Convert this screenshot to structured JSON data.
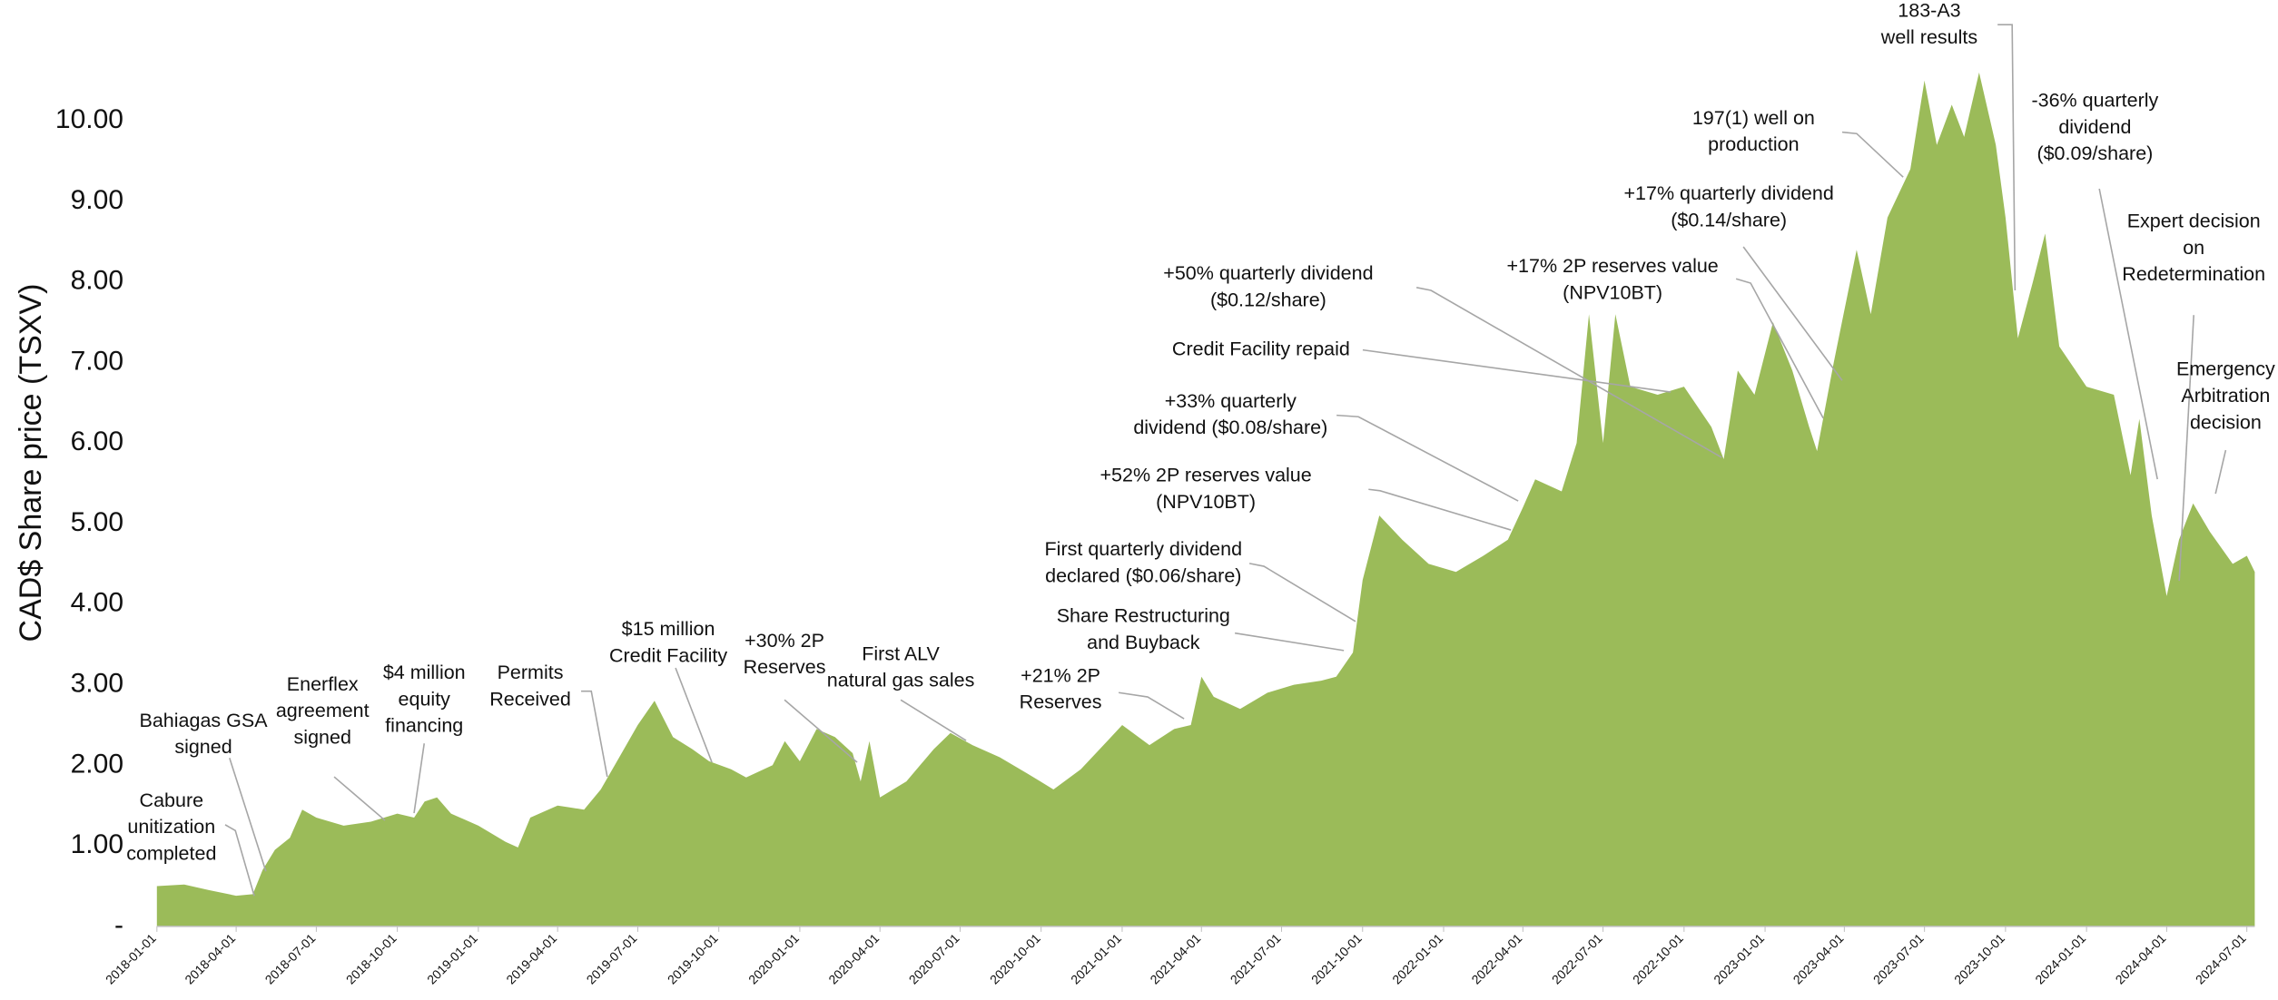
{
  "chart_data": {
    "type": "area",
    "y_label": "CAD$ Share price (TSXV)",
    "color": "#9bbb59",
    "xlim": [
      "2018-01-01",
      "2024-07-10"
    ],
    "ylim": [
      0,
      11.5
    ],
    "yticks": [
      {
        "value": 0,
        "label": "-"
      },
      {
        "value": 1,
        "label": "1.00"
      },
      {
        "value": 2,
        "label": "2.00"
      },
      {
        "value": 3,
        "label": "3.00"
      },
      {
        "value": 4,
        "label": "4.00"
      },
      {
        "value": 5,
        "label": "5.00"
      },
      {
        "value": 6,
        "label": "6.00"
      },
      {
        "value": 7,
        "label": "7.00"
      },
      {
        "value": 8,
        "label": "8.00"
      },
      {
        "value": 9,
        "label": "9.00"
      },
      {
        "value": 10,
        "label": "10.00"
      }
    ],
    "xticks": [
      "2018-01-01",
      "2018-04-01",
      "2018-07-01",
      "2018-10-01",
      "2019-01-01",
      "2019-04-01",
      "2019-07-01",
      "2019-10-01",
      "2020-01-01",
      "2020-04-01",
      "2020-07-01",
      "2020-10-01",
      "2021-01-01",
      "2021-04-01",
      "2021-07-01",
      "2021-10-01",
      "2022-01-01",
      "2022-04-01",
      "2022-07-01",
      "2022-10-01",
      "2023-01-01",
      "2023-04-01",
      "2023-07-01",
      "2023-10-01",
      "2024-01-01",
      "2024-04-01",
      "2024-07-01"
    ],
    "x": [
      "2018-01-01",
      "2018-02-01",
      "2018-03-01",
      "2018-04-01",
      "2018-04-20",
      "2018-05-01",
      "2018-05-15",
      "2018-06-01",
      "2018-06-15",
      "2018-07-01",
      "2018-08-01",
      "2018-09-01",
      "2018-10-01",
      "2018-10-20",
      "2018-11-01",
      "2018-11-15",
      "2018-12-01",
      "2019-01-01",
      "2019-02-01",
      "2019-02-15",
      "2019-03-01",
      "2019-04-01",
      "2019-05-01",
      "2019-05-20",
      "2019-06-10",
      "2019-07-01",
      "2019-07-20",
      "2019-08-10",
      "2019-09-01",
      "2019-09-20",
      "2019-10-15",
      "2019-11-01",
      "2019-12-01",
      "2019-12-15",
      "2020-01-01",
      "2020-01-20",
      "2020-02-10",
      "2020-03-01",
      "2020-03-10",
      "2020-03-20",
      "2020-04-01",
      "2020-05-01",
      "2020-06-01",
      "2020-06-20",
      "2020-07-15",
      "2020-08-15",
      "2020-09-15",
      "2020-10-15",
      "2020-11-15",
      "2020-12-15",
      "2021-01-01",
      "2021-02-01",
      "2021-03-01",
      "2021-03-20",
      "2021-04-01",
      "2021-04-15",
      "2021-05-15",
      "2021-06-15",
      "2021-07-15",
      "2021-08-15",
      "2021-09-01",
      "2021-09-20",
      "2021-10-01",
      "2021-10-20",
      "2021-11-15",
      "2021-12-15",
      "2022-01-15",
      "2022-02-15",
      "2022-03-15",
      "2022-04-01",
      "2022-04-15",
      "2022-05-15",
      "2022-06-01",
      "2022-06-15",
      "2022-07-01",
      "2022-07-15",
      "2022-08-01",
      "2022-09-01",
      "2022-10-01",
      "2022-11-01",
      "2022-11-15",
      "2022-12-01",
      "2022-12-20",
      "2023-01-10",
      "2023-02-01",
      "2023-02-20",
      "2023-03-01",
      "2023-03-20",
      "2023-04-15",
      "2023-05-01",
      "2023-05-20",
      "2023-06-15",
      "2023-07-01",
      "2023-07-15",
      "2023-08-01",
      "2023-08-15",
      "2023-09-01",
      "2023-09-20",
      "2023-10-01",
      "2023-10-15",
      "2023-11-01",
      "2023-11-15",
      "2023-12-01",
      "2024-01-01",
      "2024-02-01",
      "2024-02-20",
      "2024-03-01",
      "2024-03-15",
      "2024-04-01",
      "2024-04-15",
      "2024-05-01",
      "2024-05-20",
      "2024-06-15",
      "2024-07-01",
      "2024-07-10"
    ],
    "values": [
      0.5,
      0.52,
      0.45,
      0.38,
      0.4,
      0.7,
      0.95,
      1.1,
      1.45,
      1.35,
      1.25,
      1.3,
      1.4,
      1.35,
      1.55,
      1.6,
      1.4,
      1.25,
      1.05,
      0.98,
      1.35,
      1.5,
      1.45,
      1.7,
      2.1,
      2.5,
      2.8,
      2.35,
      2.2,
      2.05,
      1.95,
      1.85,
      2.0,
      2.3,
      2.05,
      2.45,
      2.35,
      2.15,
      1.8,
      2.3,
      1.6,
      1.8,
      2.2,
      2.4,
      2.25,
      2.1,
      1.9,
      1.7,
      1.95,
      2.3,
      2.5,
      2.25,
      2.45,
      2.5,
      3.1,
      2.85,
      2.7,
      2.9,
      3.0,
      3.05,
      3.1,
      3.4,
      4.3,
      5.1,
      4.8,
      4.5,
      4.4,
      4.6,
      4.8,
      5.2,
      5.55,
      5.4,
      6.0,
      7.6,
      6.0,
      7.6,
      6.7,
      6.6,
      6.7,
      6.2,
      5.8,
      6.9,
      6.6,
      7.5,
      6.9,
      6.2,
      5.9,
      7.0,
      8.4,
      7.6,
      8.8,
      9.4,
      10.5,
      9.7,
      10.2,
      9.8,
      10.6,
      9.7,
      8.8,
      7.3,
      8.0,
      8.6,
      7.2,
      6.7,
      6.6,
      5.6,
      6.3,
      5.1,
      4.1,
      4.8,
      5.25,
      4.9,
      4.5,
      4.6,
      4.4
    ],
    "annotations": [
      [
        "Cabure",
        "unitization",
        "completed"
      ],
      [
        "Bahiagas GSA",
        "signed"
      ],
      [
        "Enerflex",
        "agreement",
        "signed"
      ],
      [
        "$4 million",
        "equity",
        "financing"
      ],
      [
        "Permits",
        "Received"
      ],
      [
        "$15 million",
        "Credit Facility"
      ],
      [
        "+30% 2P",
        "Reserves"
      ],
      [
        "First ALV",
        "natural gas sales"
      ],
      [
        "+21% 2P",
        "Reserves"
      ],
      [
        "Share Restructuring",
        "and Buyback"
      ],
      [
        "First quarterly dividend",
        "declared ($0.06/share)"
      ],
      [
        "+52% 2P reserves value",
        "(NPV10BT)"
      ],
      [
        "+33% quarterly",
        "dividend ($0.08/share)"
      ],
      [
        "Credit Facility repaid"
      ],
      [
        "+50% quarterly dividend",
        "($0.12/share)"
      ],
      [
        "+17% 2P reserves value",
        "(NPV10BT)"
      ],
      [
        "+17% quarterly dividend",
        "($0.14/share)"
      ],
      [
        "197(1) well on",
        "production"
      ],
      [
        "183-A3",
        "well results"
      ],
      [
        "-36% quarterly",
        "dividend",
        "($0.09/share)"
      ],
      [
        "Expert decision",
        "on",
        "Redetermination"
      ],
      [
        "Emergency",
        "Arbitration",
        "decision"
      ]
    ]
  }
}
